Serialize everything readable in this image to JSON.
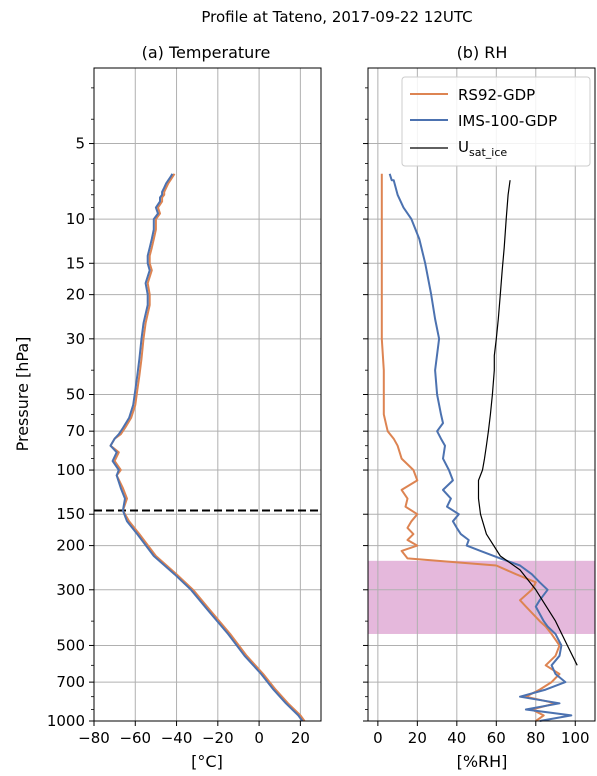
{
  "figure": {
    "title": "Profile at Tateno, 2017-09-22 12UTC"
  },
  "colors": {
    "rs92": "#dd8452",
    "ims": "#4c72b0",
    "usat": "#000000",
    "band": "#e5b8dc",
    "tropopause": "#000000"
  },
  "chart_data": [
    {
      "type": "line",
      "title": "(a) Temperature",
      "xlabel": "[°C]",
      "ylabel": "Pressure [hPa]",
      "xlim": [
        -80,
        30
      ],
      "ylim": [
        1000,
        2.5
      ],
      "yscale": "log",
      "y_reversed": true,
      "grid": true,
      "xticks": [
        -80,
        -60,
        -40,
        -20,
        0,
        20
      ],
      "xtick_labels": [
        "−80",
        "−60",
        "−40",
        "−20",
        "0",
        "20"
      ],
      "yticks": [
        5,
        10,
        15,
        20,
        30,
        50,
        70,
        100,
        150,
        200,
        300,
        500,
        700,
        1000
      ],
      "ytick_labels": [
        "5",
        "10",
        "15",
        "20",
        "30",
        "50",
        "70",
        "100",
        "150",
        "200",
        "300",
        "500",
        "700",
        "1000"
      ],
      "tropopause_hpa": 145,
      "series": [
        {
          "name": "RS92-GDP",
          "color": "#dd8452",
          "x": [
            22,
            20,
            14,
            8,
            2,
            -6,
            -14,
            -24,
            -32,
            -40,
            -50,
            -58,
            -63,
            -66,
            -64,
            -66,
            -69,
            -67,
            -70,
            -68,
            -72,
            -70,
            -67,
            -65,
            -62,
            -60,
            -59,
            -58,
            -57,
            -56,
            -55,
            -53,
            -53,
            -54,
            -52,
            -53,
            -53,
            -52,
            -51,
            -50,
            -50,
            -48,
            -49,
            -47,
            -47,
            -46,
            -46,
            -45,
            -44,
            -43,
            -42,
            -41
          ],
          "y": [
            1000,
            950,
            850,
            750,
            650,
            550,
            450,
            360,
            300,
            260,
            220,
            180,
            160,
            145,
            130,
            118,
            105,
            100,
            92,
            85,
            80,
            75,
            72,
            68,
            62,
            55,
            48,
            42,
            36,
            30,
            26,
            22,
            20,
            18,
            16,
            15,
            14,
            13,
            12,
            11,
            10,
            9.5,
            9,
            8.5,
            8.2,
            8,
            7.8,
            7.5,
            7.2,
            7,
            6.8,
            6.6
          ]
        },
        {
          "name": "IMS-100-GDP",
          "color": "#4c72b0",
          "x": [
            21,
            19,
            13,
            7,
            1,
            -7,
            -15,
            -25,
            -33,
            -41,
            -51,
            -59,
            -64,
            -66,
            -65,
            -67,
            -69,
            -68,
            -71,
            -69,
            -72,
            -70,
            -68,
            -66,
            -63,
            -61,
            -60,
            -59,
            -58,
            -57,
            -56,
            -54,
            -54,
            -55,
            -53,
            -54,
            -54,
            -53,
            -52,
            -51,
            -51,
            -49,
            -50,
            -48,
            -48,
            -47,
            -47,
            -46,
            -45,
            -44,
            -43,
            -42
          ],
          "y": [
            1000,
            950,
            850,
            750,
            650,
            550,
            450,
            360,
            300,
            260,
            220,
            180,
            160,
            145,
            130,
            118,
            105,
            100,
            92,
            85,
            80,
            75,
            72,
            68,
            62,
            55,
            48,
            42,
            36,
            30,
            26,
            22,
            20,
            18,
            16,
            15,
            14,
            13,
            12,
            11,
            10,
            9.5,
            9,
            8.5,
            8.2,
            8,
            7.8,
            7.5,
            7.2,
            7,
            6.8,
            6.6
          ]
        }
      ]
    },
    {
      "type": "line",
      "title": "(b) RH",
      "xlabel": "[%RH]",
      "xlim": [
        -5,
        110
      ],
      "ylim": [
        1000,
        2.5
      ],
      "yscale": "log",
      "y_reversed": true,
      "grid": true,
      "legend": "top-right",
      "xticks": [
        0,
        20,
        40,
        60,
        80,
        100
      ],
      "xtick_labels": [
        "0",
        "20",
        "40",
        "60",
        "80",
        "100"
      ],
      "shaded_band_hpa": [
        230,
        450
      ],
      "series": [
        {
          "name": "RS92-GDP",
          "label_main": "RS92-GDP",
          "color": "#dd8452",
          "x": [
            80,
            84,
            78,
            90,
            75,
            82,
            88,
            92,
            85,
            90,
            92,
            88,
            85,
            82,
            75,
            72,
            78,
            80,
            70,
            60,
            15,
            12,
            20,
            15,
            18,
            15,
            17,
            20,
            14,
            15,
            12,
            20,
            18,
            12,
            10,
            8,
            5,
            4,
            3,
            3,
            3,
            2,
            2,
            2,
            2,
            2,
            2,
            2,
            2,
            2,
            2,
            2
          ],
          "y": [
            1000,
            950,
            900,
            850,
            800,
            750,
            700,
            650,
            600,
            550,
            500,
            450,
            420,
            400,
            350,
            330,
            300,
            280,
            260,
            240,
            225,
            210,
            200,
            190,
            180,
            170,
            160,
            150,
            140,
            130,
            120,
            110,
            100,
            90,
            80,
            75,
            70,
            65,
            60,
            50,
            40,
            30,
            25,
            20,
            15,
            12,
            10,
            9,
            8,
            7,
            7,
            6.6
          ]
        },
        {
          "name": "IMS-100-GDP",
          "label_main": "IMS-100-GDP",
          "color": "#4c72b0",
          "x": [
            82,
            98,
            75,
            92,
            72,
            85,
            95,
            90,
            88,
            92,
            93,
            90,
            86,
            84,
            80,
            82,
            86,
            82,
            78,
            72,
            62,
            52,
            45,
            46,
            42,
            40,
            38,
            41,
            35,
            37,
            33,
            38,
            36,
            33,
            34,
            32,
            30,
            33,
            32,
            30,
            29,
            31,
            29,
            27,
            24,
            21,
            17,
            13,
            10,
            8,
            7,
            6
          ],
          "y": [
            1000,
            950,
            900,
            850,
            800,
            750,
            700,
            650,
            600,
            550,
            500,
            450,
            420,
            400,
            350,
            330,
            300,
            280,
            260,
            240,
            225,
            210,
            200,
            190,
            180,
            170,
            160,
            150,
            140,
            130,
            120,
            110,
            100,
            90,
            80,
            75,
            70,
            65,
            60,
            50,
            40,
            30,
            25,
            20,
            15,
            12,
            10,
            9,
            8,
            7,
            7,
            6.6
          ]
        },
        {
          "name": "Usat_ice",
          "label_main": "U",
          "label_sub": "sat_ice",
          "color": "#000000",
          "x": [
            101,
            96,
            90,
            80,
            72,
            62,
            55,
            52,
            51,
            51,
            53,
            54,
            55,
            56,
            57,
            58,
            59,
            59,
            60,
            61,
            62,
            63,
            64,
            65,
            66,
            67
          ],
          "y": [
            600,
            500,
            400,
            300,
            250,
            220,
            180,
            150,
            130,
            110,
            100,
            90,
            80,
            70,
            60,
            50,
            40,
            35,
            30,
            25,
            20,
            16,
            13,
            10,
            8,
            7
          ]
        }
      ]
    }
  ]
}
